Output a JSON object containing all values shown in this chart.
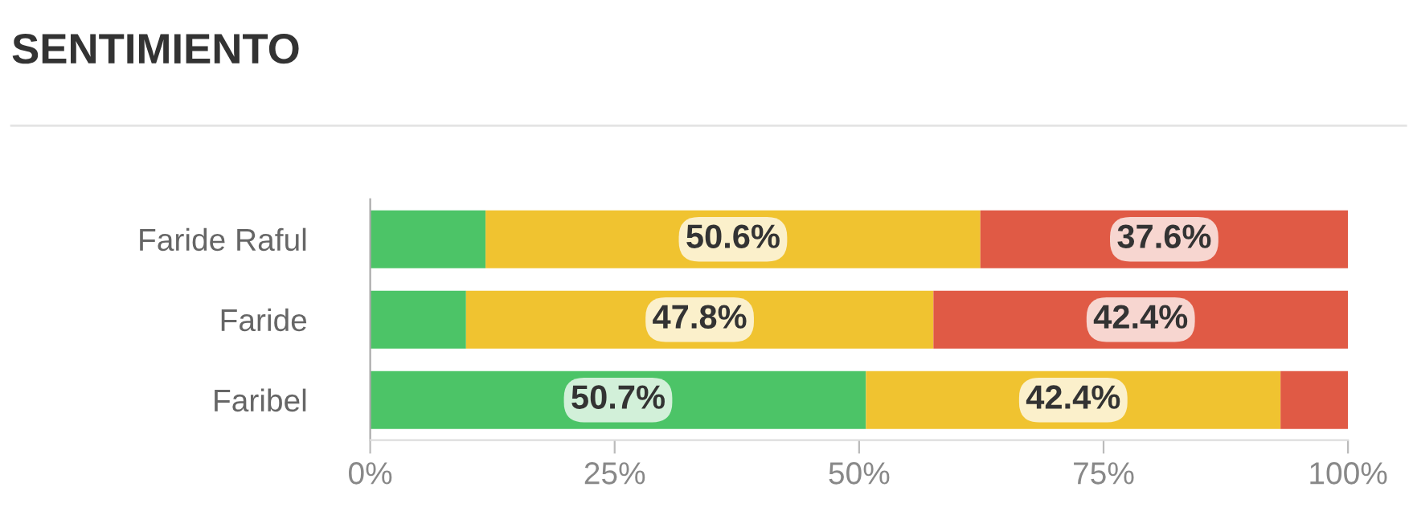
{
  "chart_data": {
    "type": "bar",
    "title": "SENTIMIENTO",
    "orientation": "horizontal",
    "stacked": true,
    "categories": [
      "Faride Raful",
      "Faride",
      "Faribel"
    ],
    "series": [
      {
        "color": "#4cc467",
        "values": [
          11.8,
          9.8,
          50.7
        ],
        "value_labels": [
          null,
          null,
          "50.7%"
        ]
      },
      {
        "color": "#f0c330",
        "values": [
          50.6,
          47.8,
          42.4
        ],
        "value_labels": [
          "50.6%",
          "47.8%",
          "42.4%"
        ]
      },
      {
        "color": "#e05a45",
        "values": [
          37.6,
          42.4,
          6.9
        ],
        "value_labels": [
          "37.6%",
          "42.4%",
          null
        ]
      }
    ],
    "xlim": [
      0,
      100
    ],
    "xticks": [
      {
        "value": 0,
        "label": "0%"
      },
      {
        "value": 25,
        "label": "25%"
      },
      {
        "value": 50,
        "label": "50%"
      },
      {
        "value": 75,
        "label": "75%"
      },
      {
        "value": 100,
        "label": "100%"
      }
    ],
    "grid": false,
    "legend": false
  }
}
